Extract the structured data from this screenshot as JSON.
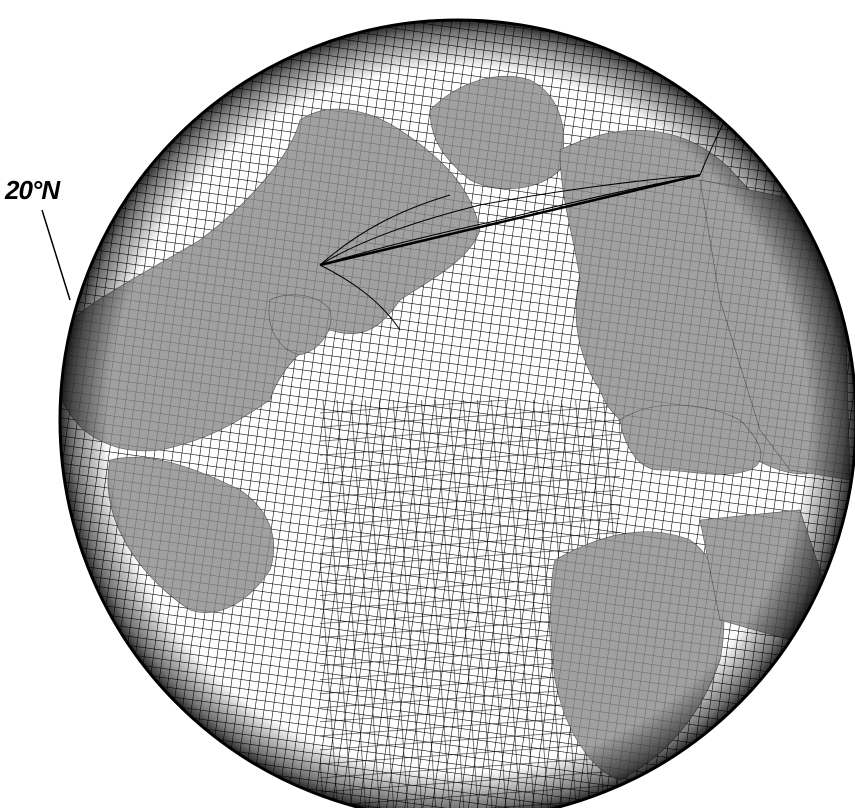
{
  "figure": {
    "latitude_label": "20°N",
    "colors": {
      "ocean_grid_background": "#ffffff",
      "land_fill": "#a0a0a0",
      "grid_line": "#000000",
      "limb_shadow": "#111111"
    },
    "projection": "orthographic",
    "grid_type": "tripolar curvilinear ocean model grid",
    "north_poles_in_view": 2
  }
}
